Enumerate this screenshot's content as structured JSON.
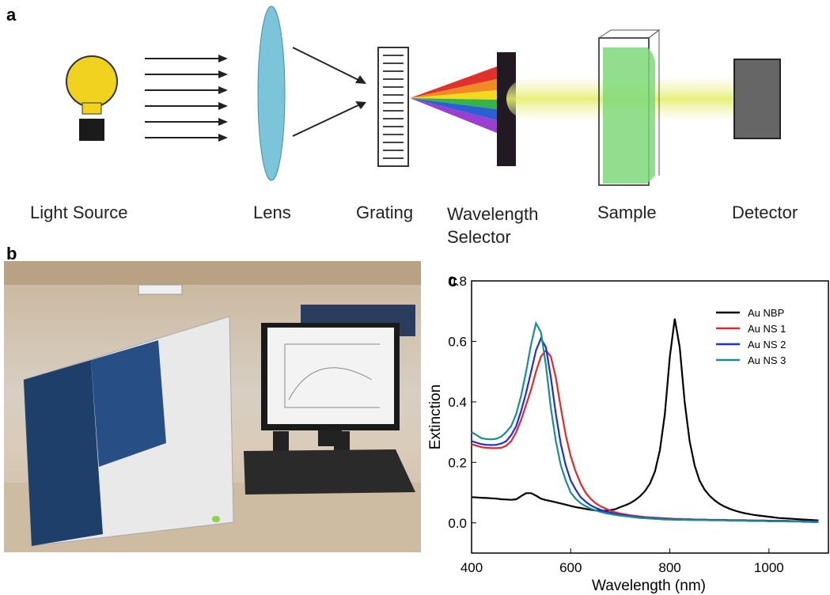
{
  "figure": {
    "panel_a": {
      "label": "a",
      "components": [
        "Light Source",
        "Lens",
        "Grating",
        "Wavelength Selector",
        "Sample",
        "Detector"
      ]
    },
    "panel_b": {
      "label": "b"
    }
  },
  "chart_data": {
    "type": "line",
    "panel_label": "c",
    "xlabel": "Wavelength (nm)",
    "ylabel": "Extinction",
    "xlim": [
      400,
      1120
    ],
    "ylim": [
      -0.1,
      0.8
    ],
    "xticks": [
      400,
      600,
      800,
      1000
    ],
    "yticks": [
      {
        "value": 0,
        "label": "0.0"
      },
      0.2,
      0.4,
      0.6,
      0.8
    ],
    "legend": "top-right",
    "x": [
      400,
      410,
      420,
      430,
      440,
      450,
      460,
      470,
      480,
      490,
      500,
      510,
      520,
      530,
      540,
      550,
      560,
      570,
      580,
      590,
      600,
      610,
      620,
      630,
      640,
      650,
      660,
      670,
      680,
      690,
      700,
      710,
      720,
      730,
      740,
      750,
      760,
      770,
      780,
      790,
      800,
      810,
      820,
      830,
      840,
      850,
      860,
      870,
      880,
      890,
      900,
      910,
      920,
      930,
      940,
      950,
      960,
      970,
      980,
      990,
      1000,
      1010,
      1020,
      1030,
      1040,
      1050,
      1060,
      1070,
      1080,
      1090,
      1100
    ],
    "series": [
      {
        "name": "Au NBP",
        "color": "#000000",
        "values": [
          0.085,
          0.084,
          0.083,
          0.082,
          0.081,
          0.08,
          0.078,
          0.077,
          0.076,
          0.078,
          0.088,
          0.098,
          0.098,
          0.09,
          0.08,
          0.075,
          0.072,
          0.068,
          0.064,
          0.06,
          0.056,
          0.052,
          0.049,
          0.046,
          0.043,
          0.041,
          0.04,
          0.04,
          0.042,
          0.045,
          0.052,
          0.058,
          0.065,
          0.075,
          0.088,
          0.105,
          0.13,
          0.17,
          0.24,
          0.36,
          0.55,
          0.675,
          0.58,
          0.4,
          0.27,
          0.19,
          0.14,
          0.11,
          0.09,
          0.075,
          0.063,
          0.054,
          0.047,
          0.041,
          0.036,
          0.032,
          0.029,
          0.026,
          0.024,
          0.022,
          0.02,
          0.018,
          0.016,
          0.015,
          0.014,
          0.013,
          0.012,
          0.011,
          0.01,
          0.009,
          0.008
        ]
      },
      {
        "name": "Au NS 1",
        "color": "#e8262a",
        "values": [
          0.26,
          0.255,
          0.25,
          0.248,
          0.247,
          0.247,
          0.248,
          0.255,
          0.27,
          0.3,
          0.34,
          0.39,
          0.44,
          0.5,
          0.55,
          0.57,
          0.55,
          0.48,
          0.38,
          0.29,
          0.22,
          0.17,
          0.13,
          0.1,
          0.08,
          0.065,
          0.055,
          0.047,
          0.04,
          0.035,
          0.031,
          0.028,
          0.025,
          0.023,
          0.021,
          0.019,
          0.018,
          0.017,
          0.016,
          0.015,
          0.014,
          0.013,
          0.013,
          0.012,
          0.012,
          0.011,
          0.011,
          0.011,
          0.01,
          0.01,
          0.01,
          0.01,
          0.009,
          0.009,
          0.009,
          0.009,
          0.008,
          0.008,
          0.008,
          0.008,
          0.007,
          0.007,
          0.007,
          0.007,
          0.006,
          0.006,
          0.006,
          0.006,
          0.005,
          0.005,
          0.005
        ]
      },
      {
        "name": "Au NS 2",
        "color": "#1f2ee0",
        "values": [
          0.27,
          0.265,
          0.26,
          0.258,
          0.257,
          0.258,
          0.262,
          0.27,
          0.29,
          0.32,
          0.37,
          0.43,
          0.5,
          0.57,
          0.61,
          0.58,
          0.48,
          0.36,
          0.26,
          0.19,
          0.14,
          0.11,
          0.085,
          0.07,
          0.058,
          0.05,
          0.043,
          0.038,
          0.034,
          0.03,
          0.027,
          0.025,
          0.022,
          0.02,
          0.018,
          0.017,
          0.016,
          0.015,
          0.014,
          0.013,
          0.012,
          0.012,
          0.011,
          0.011,
          0.011,
          0.01,
          0.01,
          0.01,
          0.009,
          0.009,
          0.009,
          0.009,
          0.008,
          0.008,
          0.008,
          0.008,
          0.008,
          0.007,
          0.007,
          0.007,
          0.007,
          0.006,
          0.006,
          0.006,
          0.006,
          0.005,
          0.005,
          0.005,
          0.005,
          0.004,
          0.004
        ]
      },
      {
        "name": "Au NS 3",
        "color": "#1a8f8a",
        "values": [
          0.3,
          0.29,
          0.28,
          0.277,
          0.276,
          0.278,
          0.285,
          0.3,
          0.32,
          0.36,
          0.42,
          0.5,
          0.59,
          0.66,
          0.63,
          0.52,
          0.38,
          0.27,
          0.19,
          0.14,
          0.1,
          0.08,
          0.065,
          0.055,
          0.047,
          0.041,
          0.036,
          0.032,
          0.029,
          0.026,
          0.024,
          0.022,
          0.02,
          0.018,
          0.016,
          0.015,
          0.014,
          0.013,
          0.012,
          0.011,
          0.011,
          0.01,
          0.01,
          0.01,
          0.009,
          0.009,
          0.009,
          0.009,
          0.008,
          0.008,
          0.008,
          0.008,
          0.007,
          0.007,
          0.007,
          0.007,
          0.006,
          0.006,
          0.006,
          0.006,
          0.005,
          0.005,
          0.005,
          0.005,
          0.004,
          0.004,
          0.004,
          0.003,
          0.003,
          0.002,
          0.002
        ]
      }
    ]
  }
}
